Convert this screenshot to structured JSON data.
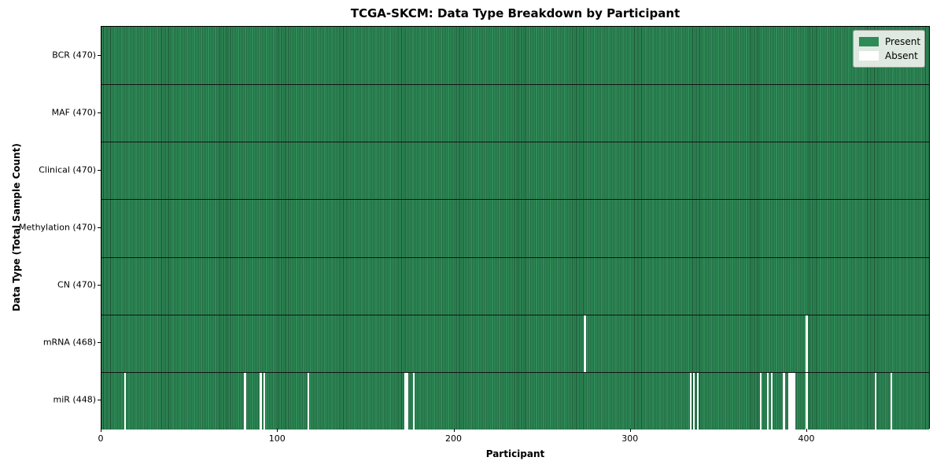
{
  "chart_data": {
    "type": "heatmap",
    "title": "TCGA-SKCM: Data Type Breakdown by Participant",
    "xlabel": "Participant",
    "ylabel": "Data Type (Total Sample Count)",
    "n_participants": 470,
    "x_ticks": [
      0,
      100,
      200,
      300,
      400
    ],
    "rows": [
      {
        "key": "bcr",
        "label": "BCR (470)",
        "present_count": 470,
        "absent_participants": []
      },
      {
        "key": "maf",
        "label": "MAF (470)",
        "present_count": 470,
        "absent_participants": []
      },
      {
        "key": "clinical",
        "label": "Clinical (470)",
        "present_count": 470,
        "absent_participants": []
      },
      {
        "key": "methylation",
        "label": "Methylation (470)",
        "present_count": 470,
        "absent_participants": []
      },
      {
        "key": "cn",
        "label": "CN (470)",
        "present_count": 470,
        "absent_participants": []
      },
      {
        "key": "mrna",
        "label": "mRNA (468)",
        "present_count": 468,
        "absent_participants": [
          274,
          400
        ]
      },
      {
        "key": "mir",
        "label": "miR (448)",
        "present_count": 448,
        "absent_participants": [
          13,
          81,
          90,
          92,
          117,
          172,
          173,
          177,
          334,
          336,
          338,
          374,
          378,
          380,
          387,
          390,
          391,
          392,
          393,
          400,
          439,
          448
        ]
      }
    ],
    "legend": [
      {
        "label": "Present",
        "color": "#2e8b57"
      },
      {
        "label": "Absent",
        "color": "#ffffff"
      }
    ],
    "colors": {
      "present_fill": "#2e8b57",
      "cell_edge": "#1c4f33",
      "row_separator": "#141414",
      "absent_fill": "#ffffff"
    },
    "legend_position": "upper right",
    "grid": false
  }
}
